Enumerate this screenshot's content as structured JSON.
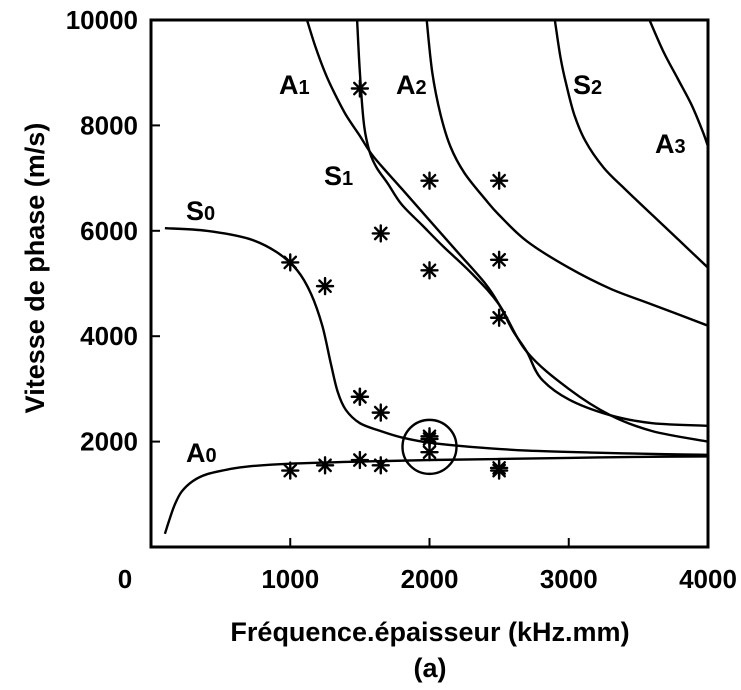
{
  "chart_data": {
    "type": "line",
    "xlabel": "Fréquence.épaisseur (kHz.mm)",
    "ylabel": "Vitesse de phase (m/s)",
    "caption": "(a)",
    "xlim": [
      0,
      4000
    ],
    "ylim": [
      0,
      10000
    ],
    "x_ticks": [
      "0",
      "1000",
      "2000",
      "3000",
      "4000"
    ],
    "y_ticks": [
      "2000",
      "4000",
      "6000",
      "8000",
      "10000"
    ],
    "grid": false,
    "series": [
      {
        "name": "A0",
        "label_main": "A",
        "label_sub": "0",
        "x": [
          100,
          130,
          170,
          220,
          300,
          400,
          550,
          700,
          1000,
          1500,
          2000,
          2500,
          3000,
          3500,
          4000
        ],
        "y": [
          250,
          500,
          800,
          1050,
          1250,
          1380,
          1470,
          1530,
          1580,
          1620,
          1650,
          1670,
          1690,
          1710,
          1720
        ]
      },
      {
        "name": "S0",
        "label_main": "S",
        "label_sub": "0",
        "x": [
          100,
          400,
          700,
          900,
          1050,
          1150,
          1230,
          1290,
          1340,
          1400,
          1500,
          1650,
          1800,
          2000,
          2300,
          2700,
          3200,
          3700,
          4000
        ],
        "y": [
          6050,
          6000,
          5850,
          5600,
          5250,
          4800,
          4200,
          3500,
          2950,
          2600,
          2350,
          2200,
          2080,
          1980,
          1900,
          1830,
          1790,
          1760,
          1750
        ]
      },
      {
        "name": "A1",
        "label_main": "A",
        "label_sub": "1",
        "x": [
          1120,
          1180,
          1250,
          1320,
          1400,
          1500,
          1600,
          1800,
          2000,
          2200,
          2400,
          2500,
          2600,
          2700,
          2800,
          3000,
          3300,
          3600,
          4000
        ],
        "y": [
          10000,
          9500,
          9000,
          8600,
          8200,
          7800,
          7400,
          6800,
          6200,
          5600,
          5000,
          4600,
          4100,
          3700,
          3200,
          2800,
          2500,
          2350,
          2300
        ]
      },
      {
        "name": "S1",
        "label_main": "S",
        "label_sub": "1",
        "x": [
          1480,
          1500,
          1530,
          1570,
          1620,
          1700,
          1800,
          1950,
          2100,
          2300,
          2500,
          2700,
          3000,
          3300,
          3600,
          4000
        ],
        "y": [
          10000,
          9000,
          8000,
          7500,
          7200,
          6900,
          6500,
          6100,
          5700,
          5200,
          4600,
          3700,
          3000,
          2500,
          2200,
          2000
        ]
      },
      {
        "name": "A2",
        "label_main": "A",
        "label_sub": "2",
        "x": [
          1980,
          2020,
          2080,
          2150,
          2250,
          2400,
          2500,
          2700,
          3000,
          3300,
          3600,
          4000
        ],
        "y": [
          10000,
          9000,
          8200,
          7600,
          7100,
          6600,
          6300,
          5800,
          5300,
          4900,
          4600,
          4200
        ]
      },
      {
        "name": "S2",
        "label_main": "S",
        "label_sub": "2",
        "x": [
          2900,
          2940,
          2980,
          3040,
          3120,
          3250,
          3400,
          3600,
          3800,
          4000
        ],
        "y": [
          10000,
          9300,
          8800,
          8200,
          7700,
          7200,
          6800,
          6300,
          5800,
          5300
        ]
      },
      {
        "name": "A3",
        "label_main": "A",
        "label_sub": "3",
        "x": [
          3580,
          3680,
          3780,
          3880,
          3960,
          4000
        ],
        "y": [
          10000,
          9400,
          8900,
          8400,
          7900,
          7600
        ]
      }
    ],
    "measurements": {
      "marker": "asterisk",
      "x": [
        1000,
        1000,
        1250,
        1250,
        1500,
        1500,
        1500,
        1650,
        1650,
        1650,
        2000,
        2000,
        2000,
        2000,
        2000,
        2500,
        2500,
        2500,
        2500,
        2500,
        1500
      ],
      "y": [
        1450,
        5400,
        1550,
        4950,
        1650,
        2850,
        8700,
        1550,
        2550,
        5950,
        1800,
        2050,
        2100,
        5250,
        6950,
        1450,
        4350,
        5450,
        6950,
        1500,
        2850
      ]
    },
    "annotation": {
      "shape": "circle",
      "center_x": 2000,
      "center_y": 1900
    }
  }
}
